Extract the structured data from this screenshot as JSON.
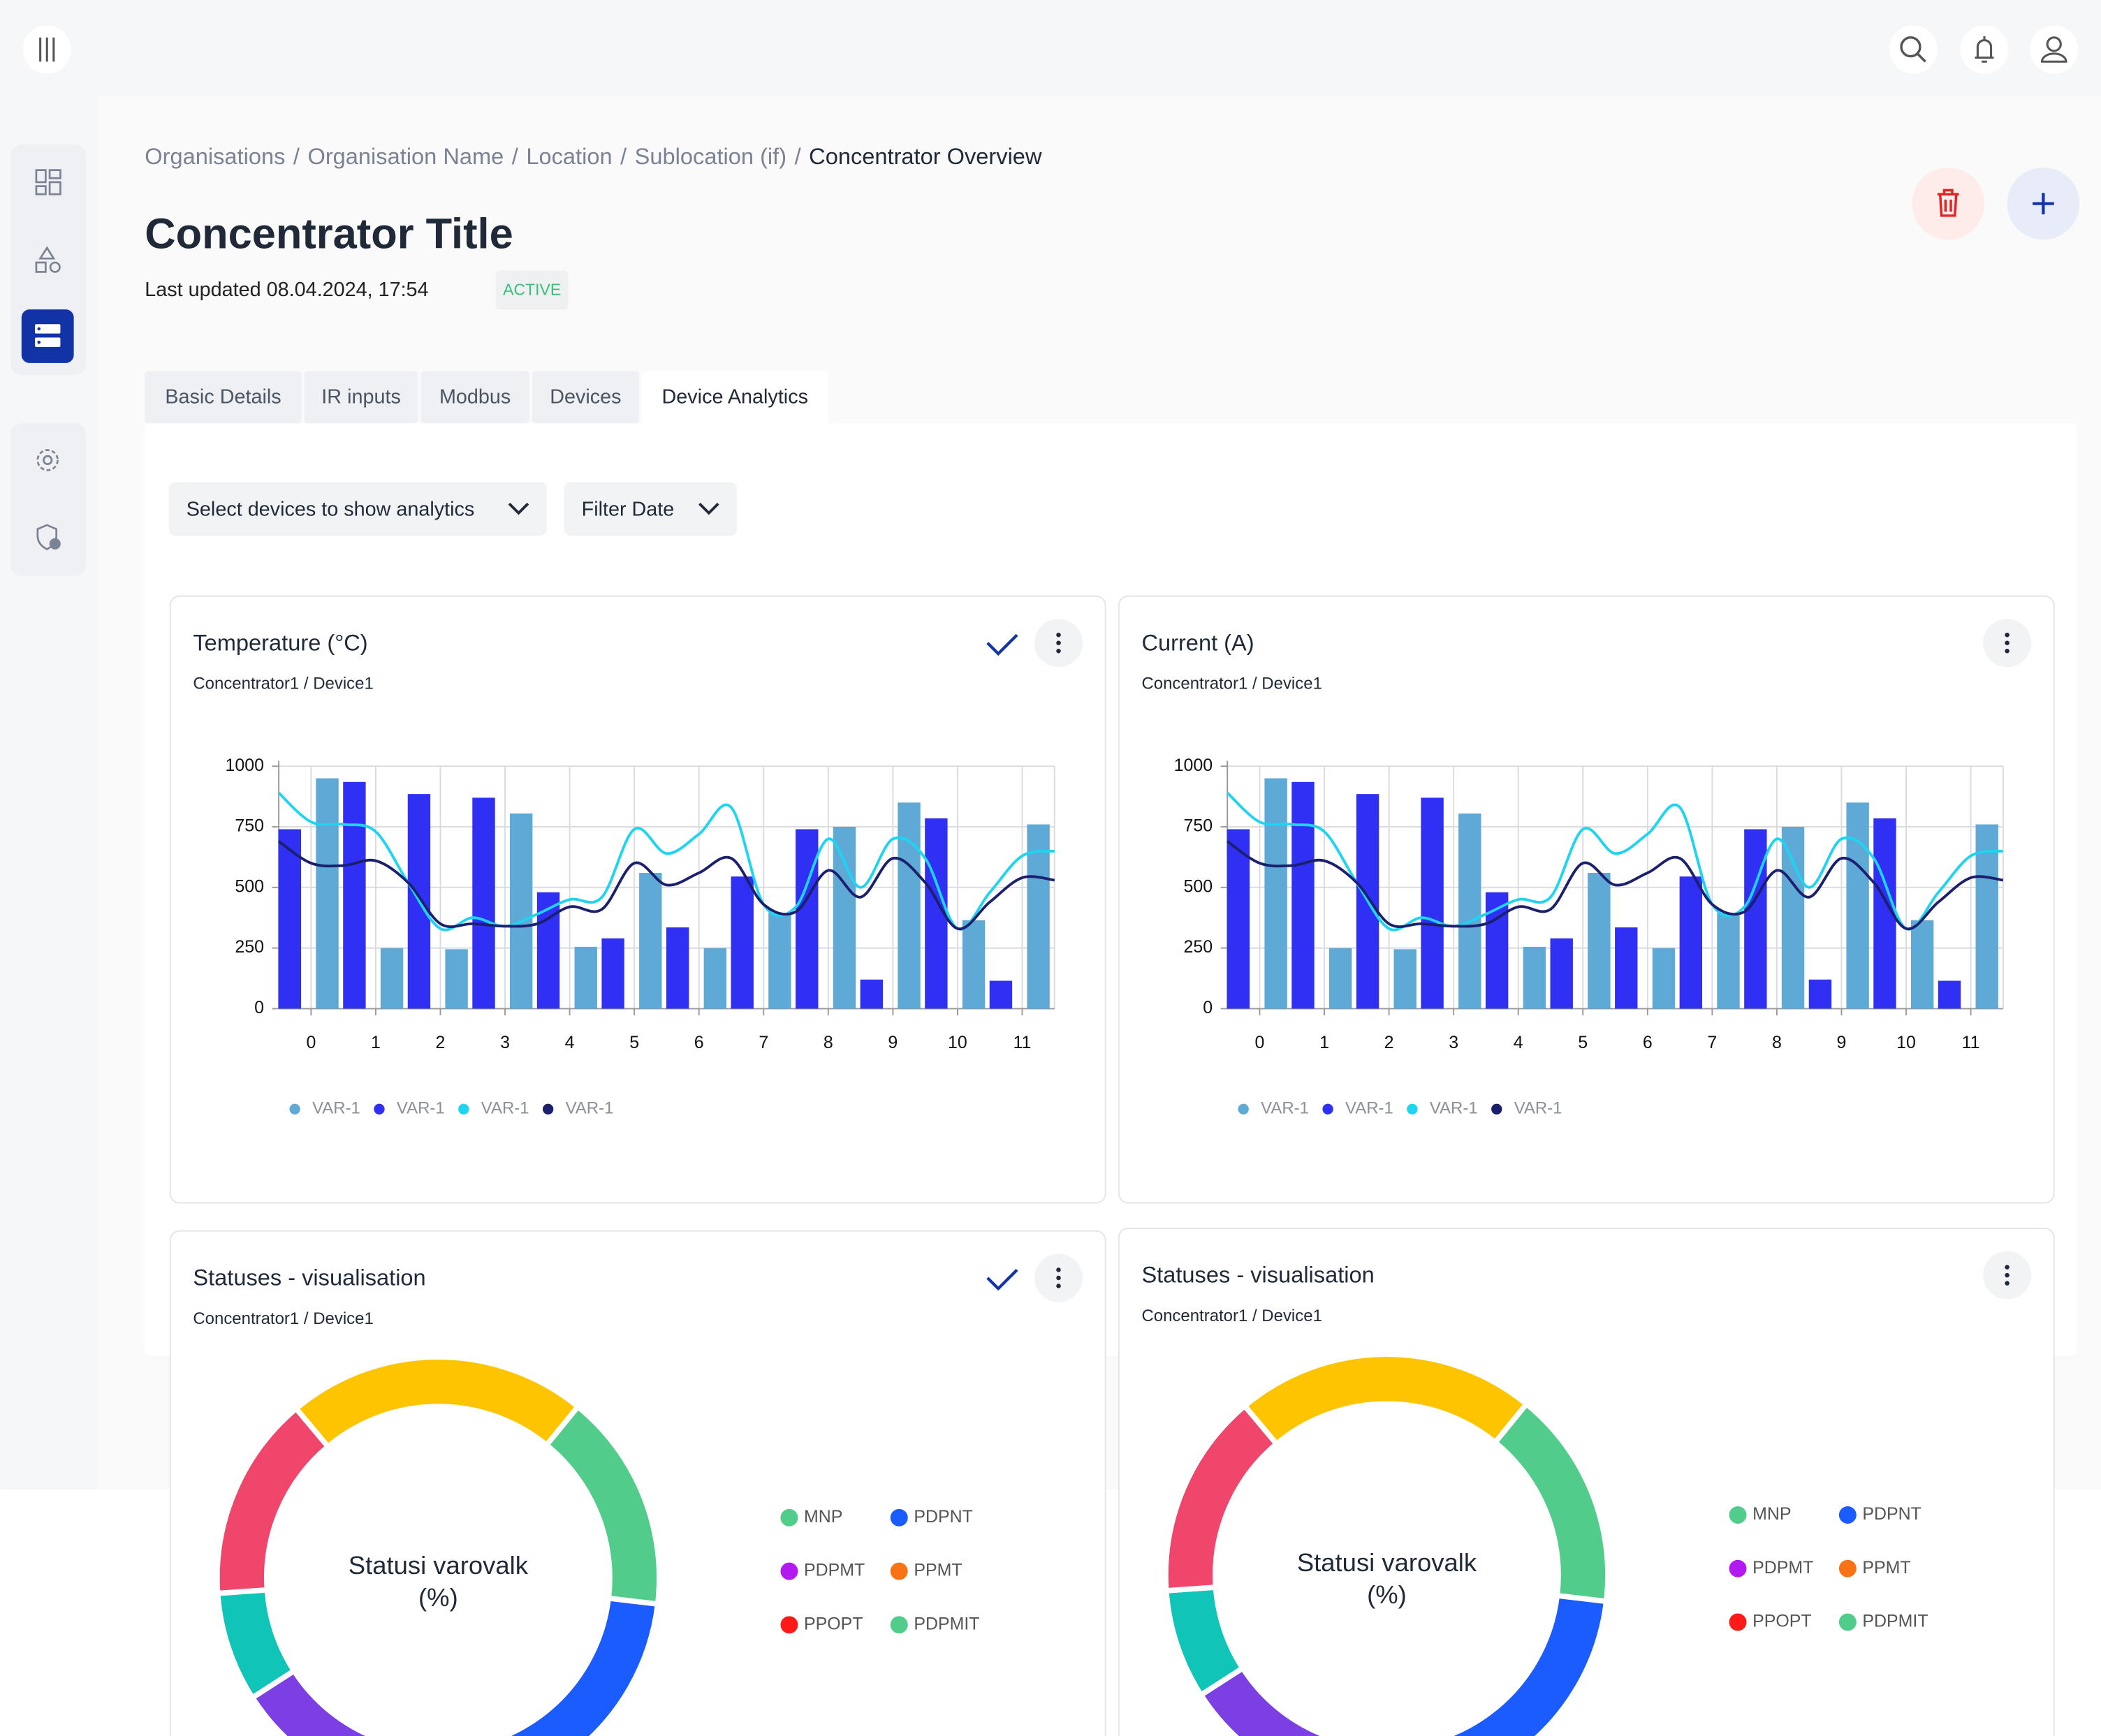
{
  "page": {
    "breadcrumbs": [
      "Organisations",
      "Organisation Name",
      "Location",
      "Sublocation (if)",
      "Concentrator Overview"
    ],
    "breadcrumb_separator": "/",
    "title": "Concentrator Title",
    "last_updated": "Last updated 08.04.2024, 17:54",
    "status": "ACTIVE",
    "tabs": [
      "Basic Details",
      "IR inputs",
      "Modbus",
      "Devices",
      "Device Analytics"
    ],
    "filters": [
      "Select devices to show analytics",
      "Filter Date"
    ]
  },
  "chart_data": [
    {
      "type": "bar",
      "title": "Temperature (°C)",
      "subtitle": "Concentrator1 / Device1",
      "x": [
        0,
        1,
        2,
        3,
        4,
        5,
        6,
        7,
        8,
        9,
        10,
        11
      ],
      "xlim": [
        -0.5,
        11.5
      ],
      "xticks": [
        0,
        1,
        2,
        3,
        4,
        5,
        6,
        7,
        8,
        9,
        10,
        11
      ],
      "ylim": [
        0,
        1000
      ],
      "yticks": [
        0,
        250,
        500,
        750,
        1000
      ],
      "grid": true,
      "series": [
        {
          "name": "VAR-1",
          "color": "#5ea9d6",
          "values": [
            950,
            250,
            245,
            805,
            255,
            560,
            250,
            395,
            750,
            850,
            365,
            760
          ]
        },
        {
          "name": "VAR-1",
          "color": "#3030f5",
          "values": [
            740,
            935,
            885,
            870,
            480,
            290,
            335,
            545,
            740,
            120,
            785,
            115
          ]
        }
      ],
      "lines": [
        {
          "name": "VAR-1",
          "color": "#1fd4f0",
          "x": [
            -0.5,
            0,
            0.5,
            1,
            1.5,
            2,
            2.5,
            3,
            3.5,
            4,
            4.5,
            5,
            5.5,
            6,
            6.5,
            7,
            7.5,
            8,
            8.5,
            9,
            9.5,
            10,
            10.5,
            11,
            11.5
          ],
          "values": [
            890,
            770,
            760,
            730,
            520,
            330,
            375,
            340,
            390,
            450,
            460,
            740,
            640,
            720,
            830,
            430,
            420,
            700,
            500,
            700,
            620,
            330,
            480,
            630,
            650
          ]
        },
        {
          "name": "VAR-1",
          "color": "#1a1f6e",
          "x": [
            -0.5,
            0,
            0.5,
            1,
            1.5,
            2,
            2.5,
            3,
            3.5,
            4,
            4.5,
            5,
            5.5,
            6,
            6.5,
            7,
            7.5,
            8,
            8.5,
            9,
            9.5,
            10,
            10.5,
            11,
            11.5
          ],
          "values": [
            690,
            600,
            590,
            610,
            520,
            350,
            350,
            340,
            350,
            420,
            410,
            600,
            510,
            560,
            620,
            430,
            400,
            570,
            460,
            620,
            520,
            330,
            440,
            540,
            530
          ]
        }
      ]
    },
    {
      "type": "bar",
      "title": "Current (A)",
      "subtitle": "Concentrator1 / Device1",
      "x": [
        0,
        1,
        2,
        3,
        4,
        5,
        6,
        7,
        8,
        9,
        10,
        11
      ],
      "xlim": [
        -0.5,
        11.5
      ],
      "xticks": [
        0,
        1,
        2,
        3,
        4,
        5,
        6,
        7,
        8,
        9,
        10,
        11
      ],
      "ylim": [
        0,
        1000
      ],
      "yticks": [
        0,
        250,
        500,
        750,
        1000
      ],
      "grid": true,
      "series": [
        {
          "name": "VAR-1",
          "color": "#5ea9d6",
          "values": [
            950,
            250,
            245,
            805,
            255,
            560,
            250,
            395,
            750,
            850,
            365,
            760
          ]
        },
        {
          "name": "VAR-1",
          "color": "#3030f5",
          "values": [
            740,
            935,
            885,
            870,
            480,
            290,
            335,
            545,
            740,
            120,
            785,
            115
          ]
        }
      ],
      "lines": [
        {
          "name": "VAR-1",
          "color": "#1fd4f0",
          "x": [
            -0.5,
            0,
            0.5,
            1,
            1.5,
            2,
            2.5,
            3,
            3.5,
            4,
            4.5,
            5,
            5.5,
            6,
            6.5,
            7,
            7.5,
            8,
            8.5,
            9,
            9.5,
            10,
            10.5,
            11,
            11.5
          ],
          "values": [
            890,
            770,
            760,
            730,
            520,
            330,
            375,
            340,
            390,
            450,
            460,
            740,
            640,
            720,
            830,
            430,
            420,
            700,
            500,
            700,
            620,
            330,
            480,
            630,
            650
          ]
        },
        {
          "name": "VAR-1",
          "color": "#1a1f6e",
          "x": [
            -0.5,
            0,
            0.5,
            1,
            1.5,
            2,
            2.5,
            3,
            3.5,
            4,
            4.5,
            5,
            5.5,
            6,
            6.5,
            7,
            7.5,
            8,
            8.5,
            9,
            9.5,
            10,
            10.5,
            11,
            11.5
          ],
          "values": [
            690,
            600,
            590,
            610,
            520,
            350,
            350,
            340,
            350,
            420,
            410,
            600,
            510,
            560,
            620,
            430,
            400,
            570,
            460,
            620,
            520,
            330,
            440,
            540,
            530
          ]
        }
      ]
    },
    {
      "type": "pie",
      "title": "Statuses - visualisation",
      "subtitle": "Concentrator1 / Device1",
      "center_label": [
        "Statusi varovalk",
        "(%)"
      ],
      "values": [
        22,
        16,
        27,
        12,
        8,
        15
      ],
      "colors": [
        "#ffc400",
        "#52cc8a",
        "#1a5cff",
        "#7b3fe4",
        "#10c4b8",
        "#f0466b"
      ],
      "legend": [
        {
          "name": "MNP",
          "color": "#52cc8a"
        },
        {
          "name": "PDPNT",
          "color": "#1a5cff"
        },
        {
          "name": "PDPMT",
          "color": "#b31af0"
        },
        {
          "name": "PPMT",
          "color": "#f97316"
        },
        {
          "name": "PPOPT",
          "color": "#ff1a1a"
        },
        {
          "name": "PDPMIT",
          "color": "#52cc8a"
        }
      ]
    },
    {
      "type": "pie",
      "title": "Statuses - visualisation",
      "subtitle": "Concentrator1 / Device1",
      "center_label": [
        "Statusi varovalk",
        "(%)"
      ],
      "values": [
        22,
        16,
        27,
        12,
        8,
        15
      ],
      "colors": [
        "#ffc400",
        "#52cc8a",
        "#1a5cff",
        "#7b3fe4",
        "#10c4b8",
        "#f0466b"
      ],
      "legend": [
        {
          "name": "MNP",
          "color": "#52cc8a"
        },
        {
          "name": "PDPNT",
          "color": "#1a5cff"
        },
        {
          "name": "PDPMT",
          "color": "#b31af0"
        },
        {
          "name": "PPMT",
          "color": "#f97316"
        },
        {
          "name": "PPOPT",
          "color": "#ff1a1a"
        },
        {
          "name": "PDPMIT",
          "color": "#52cc8a"
        }
      ]
    }
  ]
}
